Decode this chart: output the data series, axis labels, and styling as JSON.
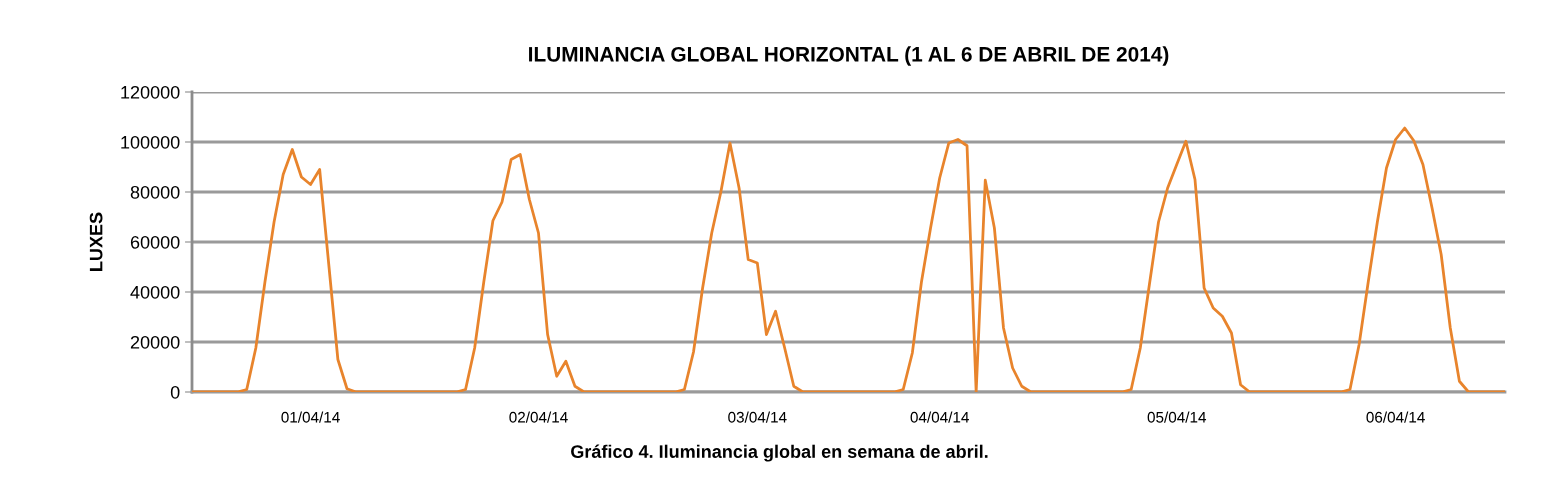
{
  "chart_data": {
    "type": "line",
    "title": "ILUMINANCIA GLOBAL HORIZONTAL (1 AL 6 DE ABRIL DE 2014)",
    "ylabel": "LUXES",
    "annotations": [
      "Gráfico 4. Iluminancia global en semana de abril."
    ],
    "categories": [
      null,
      null,
      null,
      null,
      null,
      null,
      null,
      null,
      null,
      null,
      null,
      null,
      null,
      "01/04/14",
      null,
      null,
      null,
      null,
      null,
      null,
      null,
      null,
      null,
      null,
      null,
      null,
      null,
      null,
      null,
      null,
      null,
      null,
      null,
      null,
      null,
      null,
      null,
      null,
      "02/04/14",
      null,
      null,
      null,
      null,
      null,
      null,
      null,
      null,
      null,
      null,
      null,
      null,
      null,
      null,
      null,
      null,
      null,
      null,
      null,
      null,
      null,
      null,
      null,
      "03/04/14",
      null,
      null,
      null,
      null,
      null,
      null,
      null,
      null,
      null,
      null,
      null,
      null,
      null,
      null,
      null,
      null,
      null,
      null,
      null,
      "04/04/14",
      null,
      null,
      null,
      null,
      null,
      null,
      null,
      null,
      null,
      null,
      null,
      null,
      null,
      null,
      null,
      null,
      null,
      null,
      null,
      null,
      null,
      null,
      null,
      null,
      null,
      "05/04/14",
      null,
      null,
      null,
      null,
      null,
      null,
      null,
      null,
      null,
      null,
      null,
      null,
      null,
      null,
      null,
      null,
      null,
      null,
      null,
      null,
      null,
      null,
      null,
      "06/04/14",
      null,
      null,
      null,
      null,
      null,
      null,
      null,
      null,
      null,
      null,
      null,
      null
    ],
    "ylim": [
      0,
      120000
    ],
    "yticks": [
      0,
      20000,
      40000,
      60000,
      80000,
      100000,
      120000
    ],
    "grid": "y",
    "marker": "none",
    "line_style": "solid",
    "series": [
      {
        "color": "#e8842c",
        "values": [
          0,
          0,
          0,
          0,
          0,
          0,
          1000,
          17600,
          44000,
          68000,
          87000,
          97000,
          86000,
          83000,
          89000,
          51000,
          13000,
          1300,
          0,
          0,
          0,
          0,
          0,
          0,
          0,
          0,
          0,
          0,
          0,
          0,
          1000,
          17600,
          44000,
          68500,
          76000,
          93000,
          95000,
          77000,
          63600,
          23000,
          6300,
          12300,
          2300,
          0,
          0,
          0,
          0,
          0,
          0,
          0,
          0,
          0,
          0,
          0,
          1000,
          16000,
          41600,
          63600,
          80000,
          99600,
          81600,
          53000,
          51600,
          23000,
          32300,
          17600,
          2300,
          0,
          0,
          0,
          0,
          0,
          0,
          0,
          0,
          0,
          0,
          0,
          1000,
          15600,
          44000,
          65600,
          85600,
          99600,
          101000,
          98500,
          0,
          84700,
          65600,
          25600,
          9600,
          2300,
          0,
          0,
          0,
          0,
          0,
          0,
          0,
          0,
          0,
          0,
          0,
          1000,
          17600,
          43000,
          68000,
          81600,
          91000,
          100300,
          85000,
          41600,
          33600,
          30300,
          23600,
          2900,
          0,
          0,
          0,
          0,
          0,
          0,
          0,
          0,
          0,
          0,
          0,
          1000,
          19000,
          44000,
          68000,
          89600,
          101000,
          105600,
          100500,
          91000,
          73600,
          55000,
          25600,
          4300,
          0,
          0,
          0,
          0,
          0
        ]
      }
    ]
  }
}
